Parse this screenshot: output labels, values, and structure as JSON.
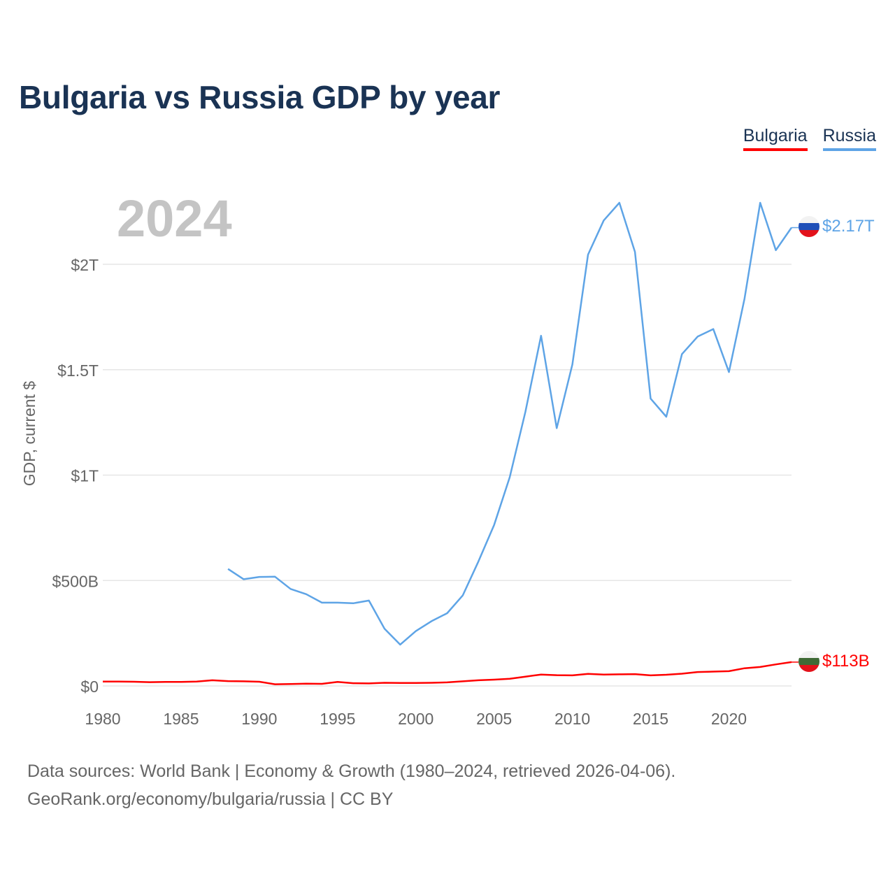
{
  "title": "Bulgaria vs Russia GDP by year",
  "legend": [
    {
      "label": "Bulgaria",
      "color": "#ff0000"
    },
    {
      "label": "Russia",
      "color": "#5ea4e6"
    }
  ],
  "year_label": "2024",
  "footer": {
    "line1": "Data sources: World Bank | Economy & Growth (1980–2024, retrieved 2026-04-06).",
    "line2": "GeoRank.org/economy/bulgaria/russia | CC BY"
  },
  "chart_data": {
    "type": "line",
    "title": "Bulgaria vs Russia GDP by year",
    "xlabel": "",
    "ylabel": "GDP, current $",
    "xlim": [
      1980,
      2024
    ],
    "ylim": [
      0,
      2000
    ],
    "unit": "billions USD",
    "x_ticks": [
      1980,
      1985,
      1990,
      1995,
      2000,
      2005,
      2010,
      2015,
      2020
    ],
    "x_tick_labels": [
      "1980",
      "1985",
      "1990",
      "1995",
      "2000",
      "2005",
      "2010",
      "2015",
      "2020"
    ],
    "y_ticks": [
      0,
      500,
      1000,
      1500,
      2000
    ],
    "y_tick_labels": [
      "$0",
      "$500B",
      "$1T",
      "$1.5T",
      "$2T"
    ],
    "grid": true,
    "series": [
      {
        "name": "Bulgaria",
        "color": "#ff0000",
        "end_label": "$113B",
        "points": [
          [
            1980,
            21
          ],
          [
            1981,
            21
          ],
          [
            1982,
            20
          ],
          [
            1983,
            18
          ],
          [
            1984,
            19
          ],
          [
            1985,
            19
          ],
          [
            1986,
            21
          ],
          [
            1987,
            27
          ],
          [
            1988,
            23
          ],
          [
            1989,
            22
          ],
          [
            1990,
            20
          ],
          [
            1991,
            8
          ],
          [
            1992,
            9
          ],
          [
            1993,
            11
          ],
          [
            1994,
            10
          ],
          [
            1995,
            19
          ],
          [
            1996,
            13
          ],
          [
            1997,
            12
          ],
          [
            1998,
            15
          ],
          [
            1999,
            14
          ],
          [
            2000,
            14
          ],
          [
            2001,
            15
          ],
          [
            2002,
            17
          ],
          [
            2003,
            22
          ],
          [
            2004,
            27
          ],
          [
            2005,
            30
          ],
          [
            2006,
            34
          ],
          [
            2007,
            44
          ],
          [
            2008,
            54
          ],
          [
            2009,
            51
          ],
          [
            2010,
            50
          ],
          [
            2011,
            57
          ],
          [
            2012,
            54
          ],
          [
            2013,
            55
          ],
          [
            2014,
            56
          ],
          [
            2015,
            50
          ],
          [
            2016,
            53
          ],
          [
            2017,
            58
          ],
          [
            2018,
            66
          ],
          [
            2019,
            68
          ],
          [
            2020,
            70
          ],
          [
            2021,
            84
          ],
          [
            2022,
            90
          ],
          [
            2023,
            102
          ],
          [
            2024,
            113
          ]
        ]
      },
      {
        "name": "Russia",
        "color": "#5ea4e6",
        "end_label": "$2.17T",
        "points": [
          [
            1988,
            555
          ],
          [
            1989,
            506
          ],
          [
            1990,
            517
          ],
          [
            1991,
            518
          ],
          [
            1992,
            460
          ],
          [
            1993,
            435
          ],
          [
            1994,
            395
          ],
          [
            1995,
            395
          ],
          [
            1996,
            392
          ],
          [
            1997,
            405
          ],
          [
            1998,
            271
          ],
          [
            1999,
            196
          ],
          [
            2000,
            260
          ],
          [
            2001,
            307
          ],
          [
            2002,
            345
          ],
          [
            2003,
            430
          ],
          [
            2004,
            591
          ],
          [
            2005,
            764
          ],
          [
            2006,
            990
          ],
          [
            2007,
            1300
          ],
          [
            2008,
            1661
          ],
          [
            2009,
            1223
          ],
          [
            2010,
            1525
          ],
          [
            2011,
            2046
          ],
          [
            2012,
            2208
          ],
          [
            2013,
            2292
          ],
          [
            2014,
            2059
          ],
          [
            2015,
            1363
          ],
          [
            2016,
            1277
          ],
          [
            2017,
            1574
          ],
          [
            2018,
            1657
          ],
          [
            2019,
            1693
          ],
          [
            2020,
            1489
          ],
          [
            2021,
            1837
          ],
          [
            2022,
            2292
          ],
          [
            2023,
            2067
          ],
          [
            2024,
            2174
          ]
        ]
      }
    ]
  }
}
